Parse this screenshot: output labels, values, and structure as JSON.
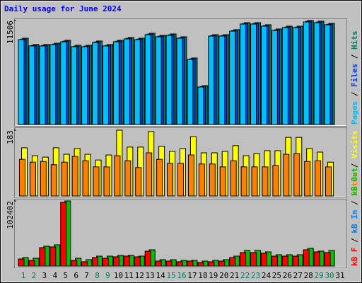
{
  "chart_data": [
    {
      "type": "bar",
      "title": "Daily usage for June 2024",
      "title_color": "#0000ff",
      "ylim": [
        0,
        11506
      ],
      "yticks": [
        11506
      ],
      "separator": " / ",
      "series": [
        {
          "name": "Pages",
          "color": "#00c0ff",
          "values": [
            9392,
            8688,
            8688,
            8845,
            9158,
            8610,
            8610,
            9079,
            8688,
            9158,
            9471,
            9392,
            9940,
            9705,
            9862,
            9549,
            7201,
            4148,
            9784,
            9784,
            10332,
            11114,
            11114,
            10880,
            10410,
            10723,
            10723,
            11346,
            11271,
            11036,
            0
          ]
        },
        {
          "name": "Files",
          "color": "#0040ff",
          "values": [
            9450,
            8750,
            8750,
            8900,
            9220,
            8670,
            8670,
            9140,
            8750,
            9220,
            9530,
            9450,
            10000,
            9765,
            9920,
            9610,
            7260,
            4200,
            9840,
            9840,
            10390,
            11170,
            11170,
            10940,
            10470,
            10780,
            10780,
            11420,
            11330,
            11090,
            0
          ]
        },
        {
          "name": "Hits",
          "color": "#00805c",
          "values": [
            9550,
            8850,
            8850,
            9000,
            9320,
            8770,
            8770,
            9240,
            8850,
            9320,
            9630,
            9550,
            10100,
            9865,
            10020,
            9710,
            7360,
            4300,
            9940,
            9940,
            10490,
            11270,
            11270,
            11040,
            10570,
            10880,
            10880,
            11506,
            11430,
            11190,
            0
          ]
        }
      ]
    },
    {
      "type": "bar",
      "ylim": [
        0,
        183
      ],
      "yticks": [
        183
      ],
      "separator": " / ",
      "series": [
        {
          "name": "Sites",
          "color": "#ff8000",
          "values": [
            102,
            94,
            96,
            87,
            94,
            110,
            98,
            81,
            81,
            112,
            98,
            79,
            120,
            102,
            91,
            91,
            114,
            89,
            89,
            81,
            98,
            81,
            81,
            81,
            85,
            116,
            118,
            96,
            98,
            81,
            0
          ]
        },
        {
          "name": "Visits",
          "color": "#ffff00",
          "values": [
            134,
            112,
            108,
            134,
            116,
            132,
            116,
            100,
            114,
            183,
            136,
            136,
            179,
            138,
            124,
            132,
            165,
            120,
            120,
            124,
            140,
            112,
            118,
            126,
            126,
            163,
            163,
            132,
            122,
            94,
            0
          ]
        }
      ]
    },
    {
      "type": "bar",
      "ylim": [
        0,
        102402
      ],
      "yticks": [
        102402
      ],
      "separator": " / ",
      "categories": [
        "1",
        "2",
        "3",
        "4",
        "5",
        "6",
        "7",
        "8",
        "9",
        "10",
        "11",
        "12",
        "13",
        "14",
        "15",
        "16",
        "17",
        "18",
        "19",
        "20",
        "21",
        "22",
        "23",
        "24",
        "25",
        "26",
        "27",
        "28",
        "29",
        "30",
        "31"
      ],
      "category_colors": [
        "#00805c",
        "#00805c",
        "#000000",
        "#000000",
        "#000000",
        "#000000",
        "#000000",
        "#00805c",
        "#00805c",
        "#000000",
        "#000000",
        "#000000",
        "#000000",
        "#000000",
        "#00805c",
        "#00805c",
        "#000000",
        "#000000",
        "#000000",
        "#000000",
        "#000000",
        "#00805c",
        "#00805c",
        "#000000",
        "#000000",
        "#000000",
        "#000000",
        "#000000",
        "#00805c",
        "#00805c",
        "#000000"
      ],
      "series": [
        {
          "name": "kB F",
          "color": "#ff0000",
          "values": [
            11130,
            8904,
            28938,
            30051,
            100176,
            8904,
            6678,
            13356,
            12243,
            14469,
            15582,
            14469,
            23373,
            7791,
            7791,
            6678,
            7791,
            5565,
            6678,
            7791,
            13356,
            21147,
            21147,
            20034,
            15582,
            15582,
            15582,
            25599,
            22260,
            21147,
            0
          ]
        },
        {
          "name": "kB In",
          "color": "#0080ff",
          "values": [
            null,
            null,
            null,
            null,
            null,
            null,
            null,
            null,
            null,
            null,
            null,
            null,
            null,
            null,
            null,
            null,
            null,
            null,
            null,
            null,
            null,
            null,
            null,
            null,
            null,
            null,
            null,
            null,
            null,
            null,
            null
          ]
        },
        {
          "name": "kB Out",
          "color": "#00c000",
          "values": [
            13356,
            12243,
            31164,
            33390,
            102402,
            12243,
            10017,
            15582,
            15582,
            16695,
            16695,
            15582,
            25599,
            10017,
            10017,
            8904,
            8904,
            7791,
            8904,
            10017,
            15582,
            24486,
            24486,
            22260,
            17808,
            17808,
            17808,
            27825,
            23373,
            24486,
            0
          ]
        }
      ]
    }
  ]
}
